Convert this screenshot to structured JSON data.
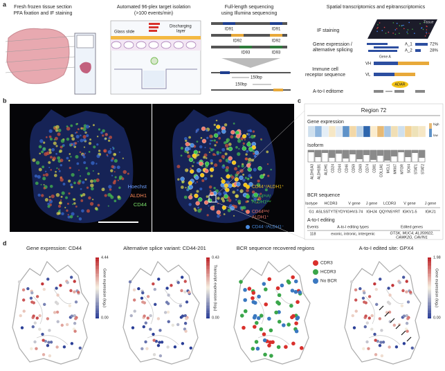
{
  "panel_a": {
    "label": "a",
    "step1": {
      "title": [
        "Fresh frozen tissue section",
        "PFA fixation and IF staining"
      ]
    },
    "step2": {
      "title": [
        "Automated 96-plex target isolation",
        "(>100 events/min)"
      ],
      "glass_slide": "Glass slide",
      "discharging_layer": [
        "Discharging",
        "layer"
      ]
    },
    "step3": {
      "title": [
        "Full-length sequencing",
        "using Illumina sequencing"
      ],
      "ids": [
        "ID91",
        "ID91",
        "ID92",
        "ID92",
        "ID93",
        "ID93"
      ],
      "reads": [
        "150bp",
        "150bp"
      ]
    },
    "step4": {
      "title": "Spatial transcriptomics and epitranscriptomics",
      "if_staining": "IF staining",
      "tissue": "Tissue",
      "gene_expression": [
        "Gene expression /",
        "alternative splicing"
      ],
      "gene_a": "Gene A",
      "isoforms": [
        "A_1",
        "A_2"
      ],
      "percents": [
        "72%",
        "28%"
      ],
      "receptor": [
        "Immune cell",
        "receptor sequence"
      ],
      "vh": "VH",
      "vl": "VL",
      "adar": "ADAR",
      "editome": "A-to-I editome"
    }
  },
  "panel_b": {
    "label": "b",
    "channels": [
      "Hoechst",
      "ALDH1",
      "CD44"
    ],
    "legend": [
      [
        "CD44⁺/ALDH1⁺"
      ],
      [
        "CD44ʰⁱᵍʰ/",
        "ALDH1ˡᵒʷ"
      ],
      [
        "CD44ˡᵒʷ/",
        "ALDH1⁺"
      ],
      [
        "CD44⁻/ALDH1⁻"
      ]
    ]
  },
  "panel_c": {
    "label": "c",
    "region": "Region 72",
    "gene_expression": "Gene expression",
    "scale": [
      "high",
      "low"
    ],
    "isoform": "Isoform",
    "genes": [
      "ALDH1A3",
      "ALDH1B1",
      "ALDH1",
      "CD24",
      "CD44",
      "CD46",
      "CD59",
      "CD69",
      "CD74",
      "CD81",
      "COL1A1",
      "MCL1",
      "MKI67",
      "MTOR",
      "SOX4",
      "STAT1",
      "STAT2"
    ],
    "bcr": {
      "title": "BCR sequence",
      "headers": [
        "Isotype",
        "HCDR3",
        "V gene",
        "J gene",
        "LCDR3",
        "V gene",
        "J gene"
      ],
      "row": [
        "G1",
        "ASLSSTYTEYDY",
        "IGHV3-74",
        "IGHJ4",
        "QQYNSYRT",
        "IGKV1-5",
        "IGKJ1"
      ]
    },
    "editing": {
      "title": "A-to-I editing",
      "headers": [
        "Events",
        "A-to-I editing types",
        "Edited genes"
      ],
      "row": [
        "118",
        "exonic, intronic, intergenic",
        [
          "GTSK, MUC4, AL359922,",
          "CAMK2G, CAVIN1"
        ]
      ]
    }
  },
  "panel_d": {
    "label": "d",
    "maps": [
      {
        "title": "Gene expression: CD44",
        "colorbar": "Gene expression (log₂)",
        "ticks": [
          "4.44",
          "0.00"
        ]
      },
      {
        "title": "Alternative splice variant: CD44-201",
        "colorbar": "Transcript expression (log₂)",
        "ticks": [
          "0.43",
          "0.00"
        ]
      },
      {
        "title": "BCR sequence recovered regions",
        "legend": [
          "CDR3",
          "HCDR3",
          "No BCR"
        ]
      },
      {
        "title": "A-to-I edited site: GPX4",
        "colorbar": "Gene expression (log₂)",
        "ticks": [
          "1.98",
          "0.00"
        ]
      }
    ]
  }
}
